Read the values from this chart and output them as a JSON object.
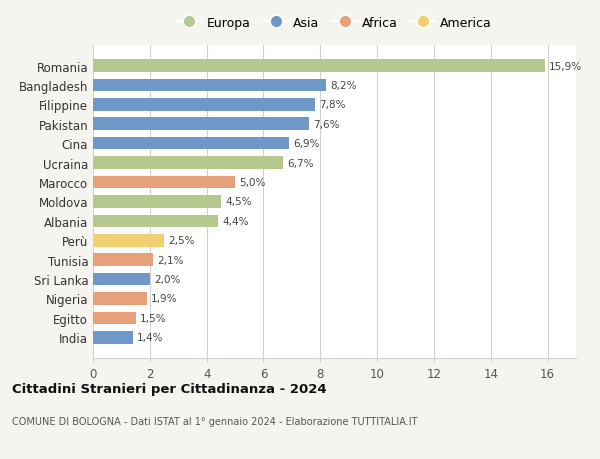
{
  "categories": [
    "Romania",
    "Bangladesh",
    "Filippine",
    "Pakistan",
    "Cina",
    "Ucraina",
    "Marocco",
    "Moldova",
    "Albania",
    "Perù",
    "Tunisia",
    "Sri Lanka",
    "Nigeria",
    "Egitto",
    "India"
  ],
  "values": [
    15.9,
    8.2,
    7.8,
    7.6,
    6.9,
    6.7,
    5.0,
    4.5,
    4.4,
    2.5,
    2.1,
    2.0,
    1.9,
    1.5,
    1.4
  ],
  "labels": [
    "15,9%",
    "8,2%",
    "7,8%",
    "7,6%",
    "6,9%",
    "6,7%",
    "5,0%",
    "4,5%",
    "4,4%",
    "2,5%",
    "2,1%",
    "2,0%",
    "1,9%",
    "1,5%",
    "1,4%"
  ],
  "colors": [
    "#b5c98e",
    "#6f97c8",
    "#6f97c8",
    "#6f97c8",
    "#6f97c8",
    "#b5c98e",
    "#e8a07a",
    "#b5c98e",
    "#b5c98e",
    "#f0d070",
    "#e8a07a",
    "#6f97c8",
    "#e8a07a",
    "#e8a07a",
    "#6f97c8"
  ],
  "legend_labels": [
    "Europa",
    "Asia",
    "Africa",
    "America"
  ],
  "legend_colors": [
    "#b5c98e",
    "#6f97c8",
    "#e8a07a",
    "#f0d070"
  ],
  "title": "Cittadini Stranieri per Cittadinanza - 2024",
  "subtitle": "COMUNE DI BOLOGNA - Dati ISTAT al 1° gennaio 2024 - Elaborazione TUTTITALIA.IT",
  "xlim": [
    0,
    17
  ],
  "xticks": [
    0,
    2,
    4,
    6,
    8,
    10,
    12,
    14,
    16
  ],
  "background_color": "#f5f4ef",
  "bar_background": "#ffffff",
  "grid_color": "#d0d0d0"
}
